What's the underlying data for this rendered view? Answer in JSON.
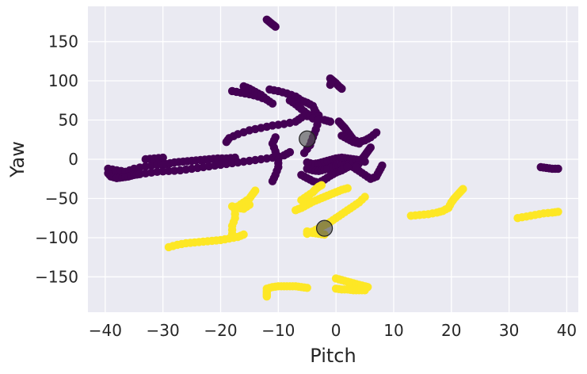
{
  "chart_data": {
    "type": "scatter",
    "title": "",
    "xlabel": "Pitch",
    "ylabel": "Yaw",
    "xlim": [
      -43,
      42
    ],
    "ylim": [
      -195,
      195
    ],
    "xticks": [
      -40,
      -30,
      -20,
      -10,
      0,
      10,
      20,
      30,
      40
    ],
    "yticks": [
      -150,
      -100,
      -50,
      0,
      50,
      100,
      150
    ],
    "grid": true,
    "legend": "none",
    "colors": {
      "background": "#eaeaf2",
      "grid": "#ffffff",
      "cluster_0": "#440154",
      "cluster_1": "#fde725",
      "centroid": "#555555"
    },
    "series": [
      {
        "color": "cluster_0",
        "segments": [
          [
            [
              -39.5,
              -12
            ],
            [
              -38,
              -14
            ],
            [
              -36.5,
              -16
            ],
            [
              -35,
              -12
            ],
            [
              -33,
              -9
            ],
            [
              -31,
              -7
            ],
            [
              -29.5,
              -6
            ],
            [
              -28,
              -4
            ],
            [
              -26.5,
              -3
            ],
            [
              -25,
              -2
            ],
            [
              -23.5,
              -1
            ],
            [
              -22,
              0
            ],
            [
              -20.5,
              1
            ],
            [
              -19,
              1
            ],
            [
              -17.5,
              2
            ]
          ],
          [
            [
              -39.5,
              -18
            ],
            [
              -39,
              -22
            ],
            [
              -38,
              -24
            ],
            [
              -37,
              -23
            ],
            [
              -36,
              -22
            ],
            [
              -35,
              -20
            ],
            [
              -34,
              -19
            ]
          ],
          [
            [
              -33,
              -18
            ],
            [
              -31,
              -16
            ],
            [
              -29,
              -15
            ],
            [
              -27,
              -14
            ],
            [
              -25,
              -12
            ],
            [
              -23,
              -10
            ],
            [
              -21,
              -8
            ],
            [
              -19,
              -6
            ],
            [
              -17,
              -4
            ],
            [
              -15,
              -2
            ],
            [
              -13,
              0
            ],
            [
              -11,
              2
            ],
            [
              -9,
              5
            ],
            [
              -8,
              9
            ]
          ],
          [
            [
              -33,
              0
            ],
            [
              -31.5,
              1
            ],
            [
              -30,
              2
            ]
          ],
          [
            [
              -19,
              22
            ],
            [
              -18.5,
              27
            ],
            [
              -17,
              32
            ],
            [
              -15,
              37
            ],
            [
              -13,
              40
            ],
            [
              -11,
              43
            ],
            [
              -9,
              45
            ],
            [
              -7,
              48
            ],
            [
              -6,
              53
            ],
            [
              -4,
              57
            ],
            [
              -3,
              56
            ]
          ],
          [
            [
              -18,
              87
            ],
            [
              -16.5,
              85
            ],
            [
              -15,
              83
            ],
            [
              -13.5,
              80
            ],
            [
              -12,
              76
            ],
            [
              -11,
              71
            ]
          ],
          [
            [
              -16,
              93
            ],
            [
              -15,
              90
            ],
            [
              -14,
              86
            ],
            [
              -13,
              82
            ],
            [
              -12,
              76
            ]
          ],
          [
            [
              -11.5,
              89
            ],
            [
              -10,
              87
            ],
            [
              -8.5,
              84
            ],
            [
              -7,
              80
            ],
            [
              -6,
              75
            ],
            [
              -5,
              72
            ],
            [
              -4,
              68
            ],
            [
              -3.5,
              60
            ],
            [
              -3,
              50
            ],
            [
              -3.5,
              38
            ],
            [
              -4,
              28
            ],
            [
              -4.5,
              18
            ],
            [
              -5.5,
              8
            ]
          ],
          [
            [
              -8,
              75
            ],
            [
              -7,
              70
            ],
            [
              -6,
              64
            ],
            [
              -5,
              58
            ],
            [
              -4,
              52
            ],
            [
              -2,
              50
            ],
            [
              -1,
              48
            ]
          ],
          [
            [
              -10.5,
              28
            ],
            [
              -11,
              20
            ],
            [
              -10.5,
              10
            ],
            [
              -10,
              0
            ],
            [
              -10,
              -10
            ],
            [
              -10.5,
              -20
            ],
            [
              -11,
              -28
            ]
          ],
          [
            [
              -12,
              178
            ],
            [
              -11.5,
              175
            ],
            [
              -11,
              172
            ],
            [
              -10.5,
              169
            ]
          ],
          [
            [
              -1,
              103
            ],
            [
              -0.5,
              100
            ],
            [
              0,
              97
            ],
            [
              0.5,
              93
            ],
            [
              1,
              90
            ]
          ],
          [
            [
              -1,
              95
            ],
            [
              -0.8,
              99
            ]
          ],
          [
            [
              0.5,
              48
            ],
            [
              1,
              44
            ],
            [
              1.5,
              40
            ],
            [
              2,
              35
            ],
            [
              2.5,
              30
            ],
            [
              3,
              25
            ],
            [
              4,
              22
            ],
            [
              5,
              24
            ],
            [
              6,
              28
            ],
            [
              7,
              34
            ]
          ],
          [
            [
              1,
              30
            ],
            [
              2,
              26
            ],
            [
              3,
              22
            ],
            [
              4,
              20
            ]
          ],
          [
            [
              -5,
              -4
            ],
            [
              -4,
              -6
            ],
            [
              -3,
              -5
            ],
            [
              -2,
              -3
            ],
            [
              -1,
              -1
            ],
            [
              0,
              1
            ],
            [
              1,
              2
            ],
            [
              2,
              1
            ],
            [
              3,
              0
            ],
            [
              4,
              -1
            ],
            [
              5,
              -3
            ]
          ],
          [
            [
              -5,
              -12
            ],
            [
              -4,
              -14
            ],
            [
              -3,
              -15
            ],
            [
              -2,
              -13
            ],
            [
              -1,
              -11
            ],
            [
              0,
              -9
            ],
            [
              1,
              -8
            ],
            [
              2,
              -7
            ],
            [
              3,
              -10
            ],
            [
              4,
              -15
            ],
            [
              5,
              -20
            ],
            [
              6,
              -25
            ],
            [
              7,
              -22
            ],
            [
              7.5,
              -15
            ],
            [
              8,
              -8
            ]
          ],
          [
            [
              -6,
              -20
            ],
            [
              -5,
              -24
            ],
            [
              -4,
              -28
            ],
            [
              -3,
              -30
            ],
            [
              -2,
              -26
            ],
            [
              -1,
              -21
            ],
            [
              0,
              -17
            ],
            [
              1,
              -14
            ],
            [
              2,
              -10
            ]
          ],
          [
            [
              6,
              15
            ],
            [
              5.5,
              10
            ],
            [
              5,
              5
            ],
            [
              4.5,
              0
            ],
            [
              4,
              -5
            ],
            [
              3.5,
              -10
            ]
          ],
          [
            [
              35.5,
              -10
            ],
            [
              36.5,
              -11
            ],
            [
              37.5,
              -12
            ],
            [
              38.5,
              -12
            ]
          ]
        ]
      },
      {
        "color": "cluster_1",
        "segments": [
          [
            [
              -29,
              -112
            ],
            [
              -27.5,
              -109
            ],
            [
              -26,
              -107
            ],
            [
              -24.5,
              -106
            ],
            [
              -23,
              -105
            ],
            [
              -21.5,
              -104
            ],
            [
              -20,
              -103
            ],
            [
              -18.5,
              -101
            ],
            [
              -17,
              -99
            ],
            [
              -16,
              -96
            ]
          ],
          [
            [
              -18,
              -95
            ],
            [
              -18,
              -85
            ],
            [
              -17.5,
              -75
            ],
            [
              -17.5,
              -65
            ],
            [
              -17,
              -60
            ],
            [
              -16,
              -55
            ],
            [
              -15,
              -50
            ],
            [
              -14.5,
              -45
            ],
            [
              -14,
              -40
            ]
          ],
          [
            [
              -18,
              -60
            ],
            [
              -17,
              -62
            ],
            [
              -16,
              -63
            ],
            [
              -15,
              -58
            ]
          ],
          [
            [
              -6,
              -52
            ],
            [
              -5,
              -47
            ],
            [
              -4,
              -42
            ],
            [
              -3.5,
              -38
            ],
            [
              -3,
              -35
            ],
            [
              -2.5,
              -33
            ]
          ],
          [
            [
              -7,
              -65
            ],
            [
              -6,
              -62
            ],
            [
              -5,
              -58
            ],
            [
              -4,
              -54
            ],
            [
              -3,
              -51
            ],
            [
              -2,
              -48
            ],
            [
              -1,
              -45
            ],
            [
              0,
              -42
            ],
            [
              1,
              -39
            ],
            [
              2,
              -37
            ]
          ],
          [
            [
              -5,
              -95
            ],
            [
              -4,
              -92
            ],
            [
              -3,
              -88
            ],
            [
              -2,
              -84
            ],
            [
              -1,
              -80
            ],
            [
              0,
              -75
            ],
            [
              1,
              -70
            ],
            [
              2,
              -65
            ],
            [
              3,
              -60
            ],
            [
              4,
              -55
            ],
            [
              5,
              -48
            ]
          ],
          [
            [
              -5,
              -92
            ],
            [
              -4,
              -94
            ],
            [
              -3,
              -95
            ],
            [
              -2,
              -96
            ]
          ],
          [
            [
              13,
              -72
            ],
            [
              14.5,
              -71
            ],
            [
              16,
              -70
            ],
            [
              17.5,
              -68
            ],
            [
              18.5,
              -66
            ],
            [
              19.5,
              -62
            ],
            [
              20,
              -55
            ],
            [
              20.5,
              -50
            ],
            [
              21,
              -46
            ],
            [
              21.5,
              -42
            ],
            [
              22,
              -38
            ]
          ],
          [
            [
              31.5,
              -75
            ],
            [
              33,
              -73
            ],
            [
              34.5,
              -71
            ],
            [
              36,
              -69
            ],
            [
              37.5,
              -68
            ],
            [
              38.5,
              -67
            ]
          ],
          [
            [
              -12,
              -165
            ],
            [
              -11,
              -163
            ],
            [
              -10,
              -162
            ],
            [
              -9,
              -162
            ],
            [
              -8,
              -162
            ],
            [
              -7,
              -162
            ],
            [
              -6,
              -163
            ],
            [
              -5,
              -164
            ]
          ],
          [
            [
              -12,
              -168
            ],
            [
              -12,
              -172
            ],
            [
              -12,
              -175
            ]
          ],
          [
            [
              0,
              -152
            ],
            [
              1,
              -154
            ],
            [
              2,
              -156
            ],
            [
              3,
              -158
            ],
            [
              4,
              -160
            ],
            [
              5,
              -162
            ],
            [
              5.5,
              -163
            ]
          ],
          [
            [
              0,
              -165
            ],
            [
              1,
              -166
            ],
            [
              2,
              -166
            ],
            [
              3,
              -167
            ],
            [
              4,
              -167
            ],
            [
              5,
              -167
            ]
          ]
        ]
      }
    ],
    "centroids": [
      {
        "x": -5,
        "y": 26
      },
      {
        "x": -2,
        "y": -88
      }
    ]
  }
}
